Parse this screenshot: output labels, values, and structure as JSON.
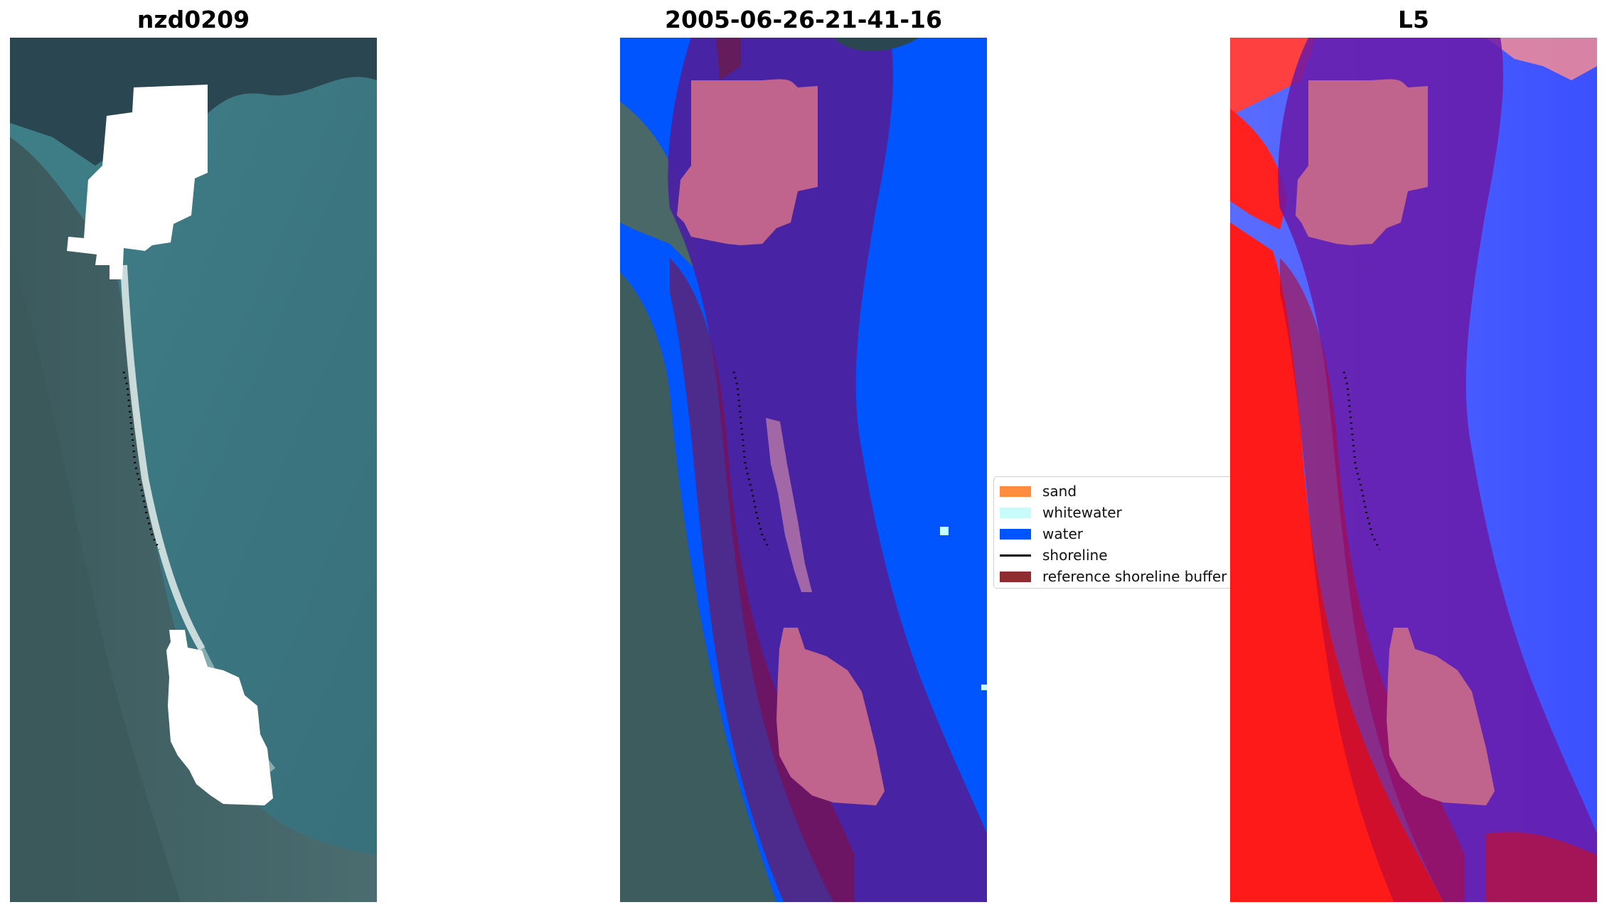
{
  "panels": [
    {
      "title": "nzd0209"
    },
    {
      "title": "2005-06-26-21-41-16"
    },
    {
      "title": "L5"
    }
  ],
  "legend": {
    "items": [
      {
        "label": "sand",
        "type": "patch",
        "color": "#ff8c3f"
      },
      {
        "label": "whitewater",
        "type": "patch",
        "color": "#c8fcfb"
      },
      {
        "label": "water",
        "type": "patch",
        "color": "#0055ff"
      },
      {
        "label": "shoreline",
        "type": "line",
        "color": "#000000"
      },
      {
        "label": "reference shoreline buffer",
        "type": "patch",
        "color": "#8e2c31"
      }
    ]
  },
  "colors": {
    "cloud_mask": "#ffffff",
    "buffer_overlay": "#8b0a2f",
    "water_class": "#0055ff",
    "inner_class_area": "#4b22a0",
    "cloud_overlay": "#c0648e",
    "index_positive": "#ff2020",
    "index_negative": "#3b50ff"
  }
}
